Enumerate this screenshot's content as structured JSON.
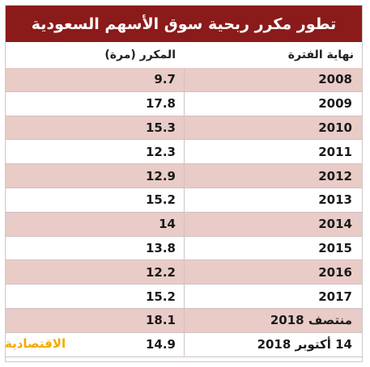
{
  "title": "تطور مكرر ربحية سوق الأسهم السعودية",
  "header": {
    "period": "نهاية الفترة",
    "ratio": "المكرر (مرة)"
  },
  "rows": [
    {
      "period": "2008",
      "ratio": "9.7",
      "shaded": true
    },
    {
      "period": "2009",
      "ratio": "17.8",
      "shaded": false
    },
    {
      "period": "2010",
      "ratio": "15.3",
      "shaded": true
    },
    {
      "period": "2011",
      "ratio": "12.3",
      "shaded": false
    },
    {
      "period": "2012",
      "ratio": "12.9",
      "shaded": true
    },
    {
      "period": "2013",
      "ratio": "15.2",
      "shaded": false
    },
    {
      "period": "2014",
      "ratio": "14",
      "shaded": true
    },
    {
      "period": "2015",
      "ratio": "13.8",
      "shaded": false
    },
    {
      "period": "2016",
      "ratio": "12.2",
      "shaded": true
    },
    {
      "period": "2017",
      "ratio": "15.2",
      "shaded": false
    },
    {
      "period": "منتصف 2018",
      "ratio": "18.1",
      "shaded": true
    },
    {
      "period": "14 أكتوبر 2018",
      "ratio": "14.9",
      "shaded": false
    }
  ],
  "logo": "الاقتصادية",
  "colors": {
    "title_bg": "#8b1a1a",
    "row_shade": "#e9cbc8",
    "logo": "#f2a900"
  }
}
